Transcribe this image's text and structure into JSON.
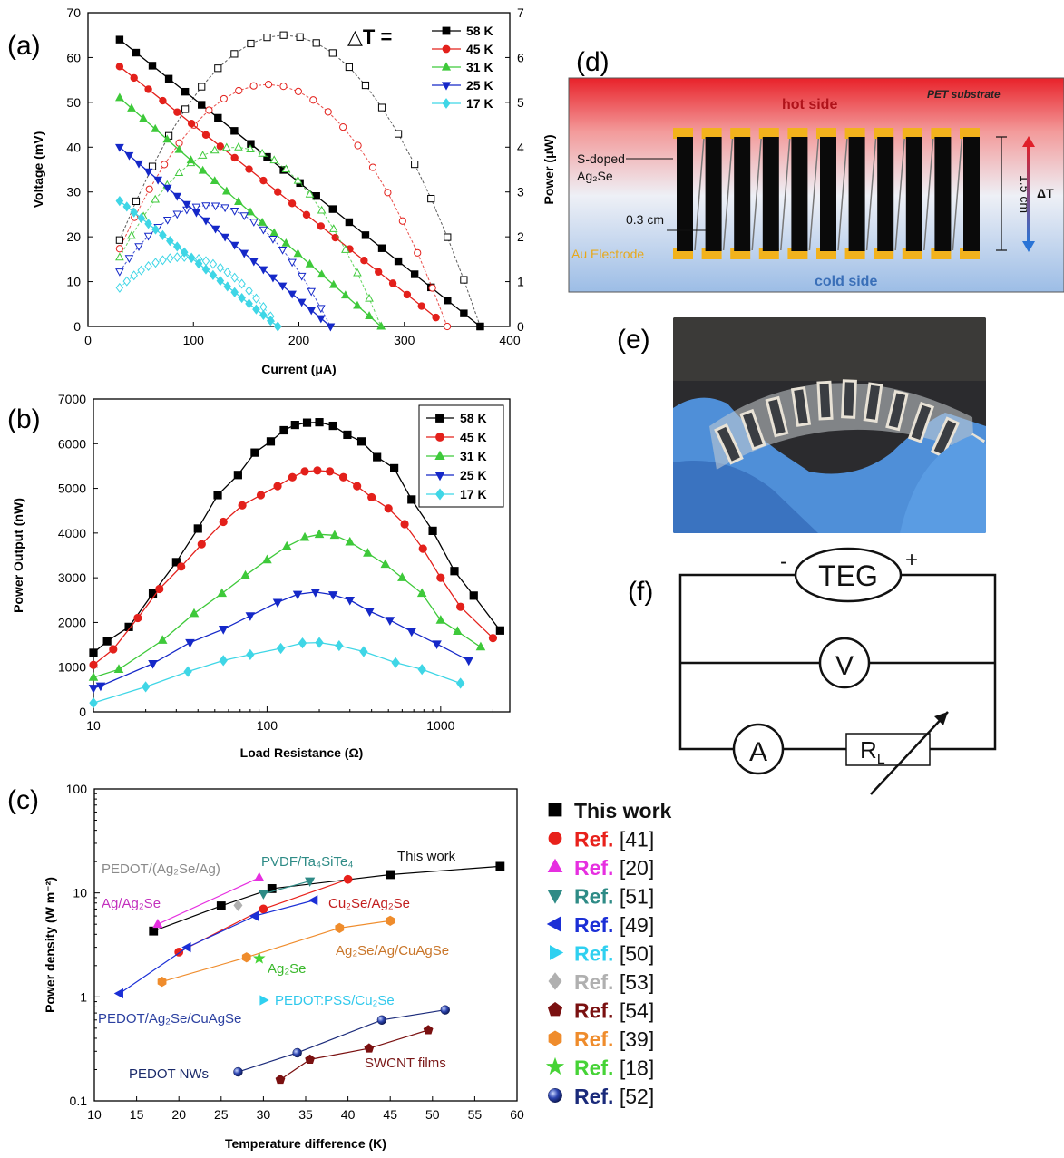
{
  "panels": {
    "a": "(a)",
    "b": "(b)",
    "c": "(c)",
    "d": "(d)",
    "e": "(e)",
    "f": "(f)"
  },
  "colors": {
    "s58": "#000000",
    "s45": "#e3201b",
    "s31": "#3ec93a",
    "s25": "#1528c8",
    "s17": "#3fd6e6",
    "ref41": "#e8211b",
    "ref20": "#e62fe0",
    "ref51": "#2e8b86",
    "ref49": "#1b2fd6",
    "ref50": "#2fd0f0",
    "ref53": "#b0b0b0",
    "ref54": "#7a1010",
    "ref39": "#ef8c2c",
    "ref18": "#46d336",
    "ref52": "#1a2a7a"
  },
  "chart_data": [
    {
      "id": "a",
      "type": "line",
      "xlabel": "Current (μA)",
      "ylabel": "Voltage (mV)",
      "y2label": "Power (μW)",
      "xlim": [
        0,
        400
      ],
      "ylim": [
        0,
        70
      ],
      "y2lim": [
        0,
        7
      ],
      "xticks": [
        "0",
        "100",
        "200",
        "300",
        "400"
      ],
      "yticks": [
        "0",
        "10",
        "20",
        "30",
        "40",
        "50",
        "60",
        "70"
      ],
      "y2ticks": [
        "0",
        "1",
        "2",
        "3",
        "4",
        "5",
        "6",
        "7"
      ],
      "legend_title": "△T =",
      "legend_position": "top-right",
      "series": [
        {
          "name": "58 K",
          "color_key": "s58",
          "marker": "square",
          "voltage_line": {
            "x0": 30,
            "y0": 64,
            "x1": 372,
            "y1": 0
          },
          "power_peak_uW": 6.5,
          "isc": 372
        },
        {
          "name": "45 K",
          "color_key": "s45",
          "marker": "circle",
          "voltage_line": {
            "x0": 30,
            "y0": 58,
            "x1": 330,
            "y1": 2
          },
          "power_peak_uW": 5.4,
          "isc": 340
        },
        {
          "name": "31 K",
          "color_key": "s31",
          "marker": "triangle-up",
          "voltage_line": {
            "x0": 30,
            "y0": 51,
            "x1": 278,
            "y1": 0
          },
          "power_peak_uW": 4.0,
          "isc": 278
        },
        {
          "name": "25 K",
          "color_key": "s25",
          "marker": "triangle-down",
          "voltage_line": {
            "x0": 30,
            "y0": 40,
            "x1": 230,
            "y1": 0
          },
          "power_peak_uW": 2.7,
          "isc": 230
        },
        {
          "name": "17 K",
          "color_key": "s17",
          "marker": "diamond",
          "voltage_line": {
            "x0": 30,
            "y0": 28,
            "x1": 180,
            "y1": 0
          },
          "power_peak_uW": 1.55,
          "isc": 180
        }
      ]
    },
    {
      "id": "b",
      "type": "line",
      "xlabel": "Load Resistance (Ω)",
      "ylabel": "Power Output (nW)",
      "xscale": "log",
      "xlim": [
        10,
        2500
      ],
      "ylim": [
        0,
        7000
      ],
      "xticks": [
        "10",
        "100",
        "1000"
      ],
      "yticks": [
        "0",
        "1000",
        "2000",
        "3000",
        "4000",
        "5000",
        "6000",
        "7000"
      ],
      "legend_position": "top-right",
      "series": [
        {
          "name": "58 K",
          "color_key": "s58",
          "marker": "square",
          "x": [
            10,
            12,
            16,
            22,
            30,
            40,
            52,
            68,
            85,
            105,
            125,
            145,
            170,
            200,
            240,
            290,
            350,
            430,
            540,
            680,
            900,
            1200,
            1550,
            2200
          ],
          "values": [
            1320,
            1580,
            1900,
            2650,
            3350,
            4100,
            4850,
            5300,
            5800,
            6050,
            6300,
            6420,
            6470,
            6480,
            6400,
            6200,
            6050,
            5700,
            5450,
            4750,
            4050,
            3150,
            2600,
            1820
          ]
        },
        {
          "name": "45 K",
          "color_key": "s45",
          "marker": "circle",
          "x": [
            10,
            13,
            18,
            24,
            32,
            42,
            56,
            72,
            92,
            115,
            140,
            165,
            195,
            230,
            275,
            330,
            400,
            500,
            620,
            790,
            1000,
            1300,
            2000
          ],
          "values": [
            1050,
            1400,
            2100,
            2750,
            3250,
            3750,
            4250,
            4620,
            4850,
            5050,
            5250,
            5380,
            5400,
            5380,
            5250,
            5050,
            4800,
            4550,
            4200,
            3650,
            3000,
            2350,
            1650
          ]
        },
        {
          "name": "31 K",
          "color_key": "s31",
          "marker": "triangle-up",
          "x": [
            10,
            14,
            25,
            38,
            55,
            75,
            100,
            130,
            165,
            200,
            245,
            300,
            380,
            480,
            600,
            780,
            1000,
            1250,
            1700
          ],
          "values": [
            770,
            950,
            1600,
            2200,
            2650,
            3050,
            3400,
            3700,
            3900,
            3970,
            3950,
            3800,
            3550,
            3300,
            3000,
            2650,
            2050,
            1800,
            1450
          ]
        },
        {
          "name": "25 K",
          "color_key": "s25",
          "marker": "triangle-down",
          "x": [
            10,
            11,
            22,
            36,
            56,
            80,
            115,
            150,
            190,
            240,
            300,
            390,
            510,
            680,
            950,
            1450
          ],
          "values": [
            530,
            580,
            1080,
            1550,
            1850,
            2150,
            2450,
            2630,
            2680,
            2620,
            2500,
            2250,
            2050,
            1800,
            1520,
            1150
          ]
        },
        {
          "name": "17 K",
          "color_key": "s17",
          "marker": "diamond",
          "x": [
            10,
            20,
            35,
            56,
            80,
            120,
            160,
            200,
            260,
            360,
            550,
            780,
            1300
          ],
          "values": [
            200,
            560,
            900,
            1150,
            1280,
            1420,
            1540,
            1550,
            1480,
            1350,
            1100,
            950,
            640
          ]
        }
      ]
    },
    {
      "id": "c",
      "type": "scatter",
      "xlabel": "Temperature difference (K)",
      "ylabel": "Power density (W m-2)",
      "yscale": "log",
      "xlim": [
        10,
        60
      ],
      "ylim": [
        0.1,
        100
      ],
      "xticks": [
        "10",
        "15",
        "20",
        "25",
        "30",
        "35",
        "40",
        "45",
        "50",
        "55",
        "60"
      ],
      "yticks": [
        "0.1",
        "1",
        "10",
        "100"
      ],
      "legend_position": "right",
      "series": [
        {
          "name": "This work",
          "legend_ref": "This work",
          "color_key": "s58",
          "marker": "square",
          "x": [
            17,
            25,
            31,
            45,
            58
          ],
          "values": [
            4.3,
            7.5,
            11,
            15,
            18
          ],
          "label": "This work"
        },
        {
          "name": "Ref.",
          "legend_ref": "[41]",
          "color_key": "ref41",
          "marker": "circle",
          "x": [
            20,
            30,
            40
          ],
          "values": [
            2.7,
            7.0,
            13.5
          ],
          "label": "Cu2Se/Ag2Se"
        },
        {
          "name": "Ref.",
          "legend_ref": "[20]",
          "color_key": "ref20",
          "marker": "triangle-up",
          "x": [
            17.5,
            29.5
          ],
          "values": [
            5.0,
            14.0
          ],
          "label": "PEDOT/(Ag2Se/Ag)"
        },
        {
          "name": "Ref.",
          "legend_ref": "[51]",
          "color_key": "ref51",
          "marker": "triangle-down",
          "x": [
            30,
            35.5
          ],
          "values": [
            9.8,
            13.0
          ],
          "label": "PVDF/Ta4SiTe4"
        },
        {
          "name": "Ref.",
          "legend_ref": "[49]",
          "color_key": "ref49",
          "marker": "triangle-left",
          "x": [
            13,
            21,
            29,
            36
          ],
          "values": [
            1.08,
            3.0,
            6.0,
            8.5
          ],
          "label": "PEDOT/Ag2Se/CuAgSe"
        },
        {
          "name": "Ref.",
          "legend_ref": "[50]",
          "color_key": "ref50",
          "marker": "triangle-right",
          "x": [
            30
          ],
          "values": [
            0.93
          ],
          "label": "PEDOT:PSS/Cu2Se"
        },
        {
          "name": "Ref.",
          "legend_ref": "[53]",
          "color_key": "ref53",
          "marker": "diamond",
          "x": [
            27
          ],
          "values": [
            7.6
          ],
          "label": "Ag/Ag2Se"
        },
        {
          "name": "Ref.",
          "legend_ref": "[54]",
          "color_key": "ref54",
          "marker": "pentagon",
          "x": [
            32,
            35.5,
            42.5,
            49.5
          ],
          "values": [
            0.16,
            0.25,
            0.32,
            0.48
          ],
          "label": "SWCNT films"
        },
        {
          "name": "Ref.",
          "legend_ref": "[39]",
          "color_key": "ref39",
          "marker": "hexagon",
          "x": [
            18,
            28,
            39,
            45
          ],
          "values": [
            1.4,
            2.4,
            4.6,
            5.4
          ],
          "label": "Ag2Se/Ag/CuAgSe"
        },
        {
          "name": "Ref.",
          "legend_ref": "[18]",
          "color_key": "ref18",
          "marker": "star",
          "x": [
            29.5
          ],
          "values": [
            2.35
          ],
          "label": "Ag2Se"
        },
        {
          "name": "Ref.",
          "legend_ref": "[52]",
          "color_key": "ref52",
          "marker": "sphere",
          "x": [
            27,
            34,
            44,
            51.5
          ],
          "values": [
            0.19,
            0.29,
            0.6,
            0.75
          ],
          "label": "PEDOT NWs"
        }
      ]
    }
  ],
  "panel_c_labels": {
    "pedot_ag2se_ag": "PEDOT/(Ag₂Se/Ag)",
    "pvdf": "PVDF/Ta₄SiTe₄",
    "this_work": "This work",
    "ag_ag2se": "Ag/Ag₂Se",
    "cu2se": "Cu₂Se/Ag₂Se",
    "ag2se_ag_cuagse": "Ag₂Se/Ag/CuAgSe",
    "ag2se": "Ag₂Se",
    "pedot_pss": "PEDOT:PSS/Cu₂Se",
    "pedot_ag2se_cuagse": "PEDOT/Ag₂Se/CuAgSe",
    "pedot_nws": "PEDOT NWs",
    "swcnt": "SWCNT films",
    "ylabel_display": "Power density (W m⁻²)"
  },
  "device": {
    "hot_side": "hot side",
    "pet_substrate": "PET substrate",
    "s_doped": "S-doped",
    "ag2se": "Ag₂Se",
    "width_label": "0.3 cm",
    "height_label": "1.5 cm",
    "delta_t": "ΔT",
    "au_electrode": "Au Electrode",
    "cold_side": "cold side",
    "legs": 11
  },
  "circuit": {
    "teg": "TEG",
    "minus": "-",
    "plus": "+",
    "voltmeter": "V",
    "ammeter": "A",
    "load": "R",
    "load_sub": "L"
  }
}
